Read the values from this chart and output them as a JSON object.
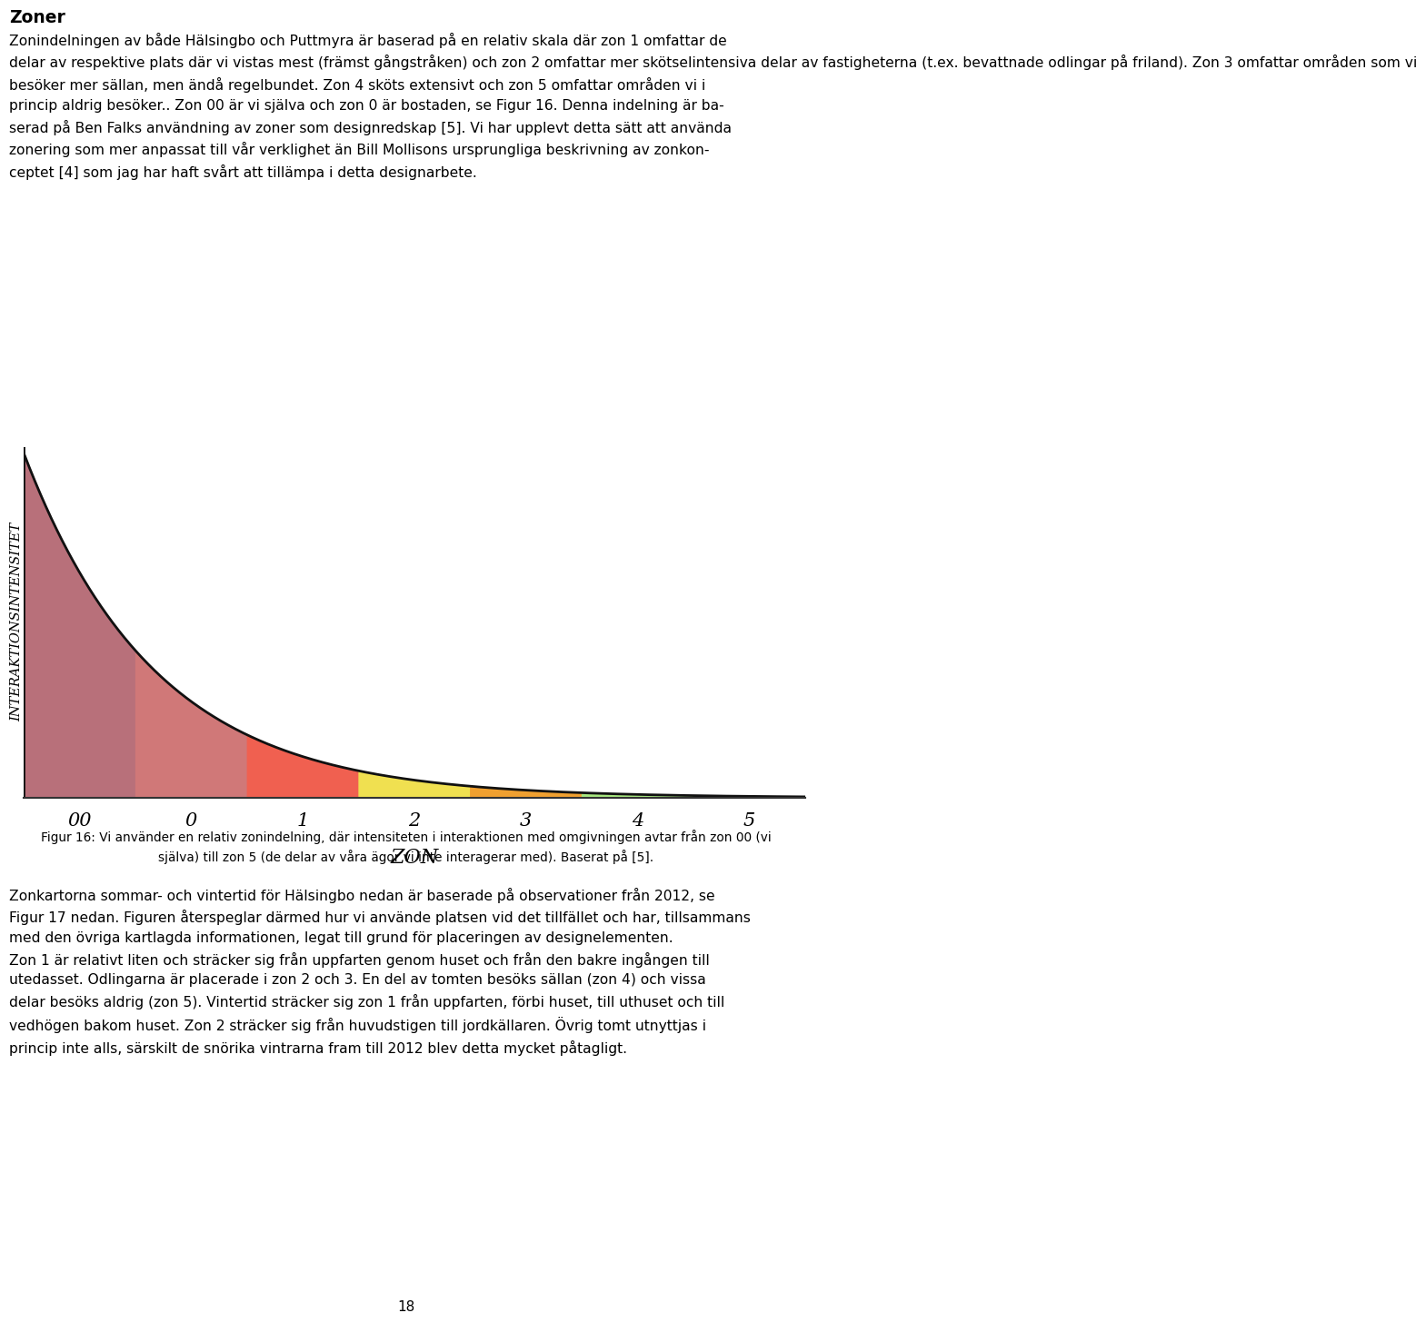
{
  "title_text": "Zoner",
  "paragraph_lines": [
    "Zonindelningen av både Hälsingbo och Puttmyra är baserad på en relativ skala där zon 1 omfattar de",
    "delar av respektive plats där vi vistas mest (främst gångstråken) och zon 2 omfattar mer skötselintensiva delar av fastigheterna (t.ex.",
    "bevattnade odlingar på friland). Zon 3 omfattar områden som vi besöker mer sällan, men ändå regelbundet. Zon 4 sköts extensivt och zon 5",
    "omfattar områden vi i princip aldrig besöker.. Zon 00 är vi själva och zon 0 är bostaden, se Figur 16. Denna indelning är baserad på Ben",
    "Falks användning av zoner som designredskap [5]. Vi har upplevt detta sätt att använda zonering som mer anpassat till vår verklighet än Bill",
    "Mollisons ursprungliga beskrivning av zonkonceptet [4] som jag har haft svårt att tillämpa i detta designarbete."
  ],
  "figure_caption_line1": "Figur 16: Vi använder en relativ zonindelning, där intensiteten i interaktionen med omgivningen avtar från zon 00 (vi",
  "figure_caption_line2": "själva) till zon 5 (de delar av våra ägor vi inte interagerar med). Baserat på [5].",
  "bottom_lines": [
    "Zonkartorna sommar- och vintertid för Hälsingbo nedan är baserade på observationer från 2012, se",
    "Figur 17 nedan. Figuren återspeglar därmed hur vi använde platsen vid det tillfället och har, tillsammans med den övriga kartlagda informationen,",
    "legat till grund för placeringen av designelementen. Zon 1 är relativt liten och sträcker sig från uppfarten genom huset och från den bakre",
    "ingången till utedasset. Odlingarna är placerade i zon 2 och 3. En del av tomten besöks sällan (zon 4) och vissa delar besöks aldrig (zon 5).",
    "Vintertid sträcker sig zon 1 från uppfarten, förbi huset, till uthuset och till vedhögen bakom huset. Zon 2 sträcker sig från huvudstigen till",
    "jordkällaren. Övrig tomt utnyttjas i princip inte alls, särskilt de snörika vintrarna fram till 2012 blev detta mycket påtagligt."
  ],
  "page_number": "18",
  "ylabel": "INTERAKTIONSINTENSITET",
  "xlabel": "ZON",
  "xtick_labels": [
    "00",
    "0",
    "1",
    "2",
    "3",
    "4",
    "5"
  ],
  "zone_colors": [
    "#b8707a",
    "#d07878",
    "#f06050",
    "#f0e050",
    "#f0a030",
    "#a8e880",
    "#3aaa45"
  ],
  "background_color": "#ffffff",
  "curve_color": "#111111"
}
